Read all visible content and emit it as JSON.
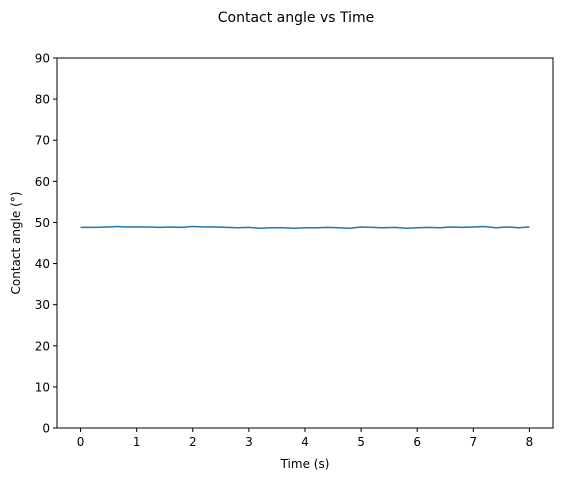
{
  "chart_data": {
    "type": "line",
    "title": "Contact angle vs Time",
    "xlabel": "Time (s)",
    "ylabel": "Contact angle (°)",
    "xlim": [
      -0.42,
      8.42
    ],
    "ylim": [
      0,
      90
    ],
    "x_ticks": [
      0,
      1,
      2,
      3,
      4,
      5,
      6,
      7,
      8
    ],
    "y_ticks": [
      0,
      10,
      20,
      30,
      40,
      50,
      60,
      70,
      80,
      90
    ],
    "grid": false,
    "series": [
      {
        "color": "#1f77b4",
        "x": [
          0,
          0.25,
          0.5,
          0.65,
          0.8,
          1.0,
          1.2,
          1.4,
          1.6,
          1.8,
          2.0,
          2.2,
          2.4,
          2.6,
          2.8,
          3.0,
          3.2,
          3.4,
          3.6,
          3.8,
          4.0,
          4.2,
          4.4,
          4.6,
          4.8,
          5.0,
          5.2,
          5.4,
          5.6,
          5.8,
          6.0,
          6.2,
          6.4,
          6.6,
          6.8,
          7.0,
          7.2,
          7.4,
          7.6,
          7.8,
          8.0
        ],
        "values": [
          48.8,
          48.8,
          48.9,
          49.0,
          48.9,
          48.9,
          48.9,
          48.8,
          48.9,
          48.8,
          49.0,
          48.9,
          48.9,
          48.8,
          48.7,
          48.8,
          48.6,
          48.7,
          48.7,
          48.6,
          48.7,
          48.7,
          48.8,
          48.7,
          48.6,
          48.9,
          48.8,
          48.7,
          48.8,
          48.6,
          48.7,
          48.8,
          48.7,
          48.9,
          48.8,
          48.9,
          49.0,
          48.7,
          48.9,
          48.7,
          48.9
        ]
      }
    ]
  }
}
